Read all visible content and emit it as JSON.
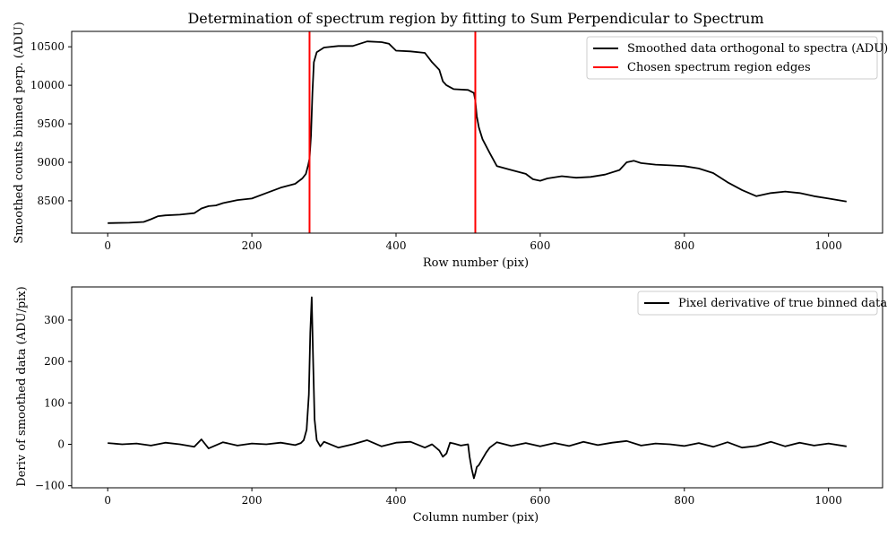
{
  "chart_data": [
    {
      "type": "line",
      "title": "Determination of spectrum region by fitting to Sum Perpendicular to Spectrum",
      "xlabel": "Row number (pix)",
      "ylabel": "Smoothed counts binned perp. (ADU)",
      "xlim": [
        -50,
        1075
      ],
      "ylim": [
        8080,
        10700
      ],
      "xticks": [
        0,
        200,
        400,
        600,
        800,
        1000
      ],
      "yticks": [
        8500,
        9000,
        9500,
        10000,
        10500
      ],
      "legend_position": "upper-right",
      "series": [
        {
          "name": "Smoothed data orthogonal to spectra (ADU)",
          "color": "#000000",
          "x": [
            0,
            30,
            50,
            60,
            70,
            80,
            100,
            120,
            130,
            140,
            150,
            160,
            180,
            200,
            220,
            240,
            260,
            270,
            275,
            278,
            280,
            282,
            284,
            286,
            290,
            300,
            320,
            340,
            360,
            380,
            390,
            400,
            420,
            440,
            450,
            460,
            465,
            470,
            480,
            500,
            508,
            510,
            512,
            515,
            520,
            530,
            540,
            560,
            580,
            590,
            600,
            610,
            630,
            650,
            670,
            690,
            710,
            720,
            730,
            740,
            760,
            780,
            800,
            820,
            840,
            860,
            880,
            900,
            920,
            940,
            960,
            980,
            1000,
            1025
          ],
          "values": [
            8210,
            8215,
            8225,
            8260,
            8300,
            8310,
            8320,
            8340,
            8400,
            8430,
            8440,
            8470,
            8510,
            8530,
            8600,
            8670,
            8720,
            8790,
            8850,
            8960,
            9050,
            9350,
            9900,
            10300,
            10430,
            10490,
            10510,
            10510,
            10570,
            10560,
            10540,
            10450,
            10440,
            10420,
            10300,
            10200,
            10050,
            10000,
            9950,
            9940,
            9900,
            9800,
            9600,
            9450,
            9300,
            9120,
            8950,
            8900,
            8850,
            8780,
            8760,
            8790,
            8820,
            8800,
            8810,
            8840,
            8900,
            9000,
            9020,
            8990,
            8970,
            8960,
            8950,
            8920,
            8860,
            8740,
            8640,
            8560,
            8600,
            8620,
            8600,
            8560,
            8530,
            8490
          ]
        },
        {
          "name": "Chosen spectrum region edges",
          "color": "#ff0000",
          "vlines": [
            280,
            510
          ]
        }
      ]
    },
    {
      "type": "line",
      "title": "",
      "xlabel": "Column number (pix)",
      "ylabel": "Deriv of smoothed data (ADU/pix)",
      "xlim": [
        -50,
        1075
      ],
      "ylim": [
        -105,
        380
      ],
      "xticks": [
        0,
        200,
        400,
        600,
        800,
        1000
      ],
      "yticks": [
        -100,
        0,
        100,
        200,
        300
      ],
      "legend_position": "upper-right",
      "series": [
        {
          "name": "Pixel derivative of true binned data",
          "color": "#000000",
          "x": [
            0,
            20,
            40,
            60,
            80,
            100,
            120,
            130,
            140,
            160,
            180,
            200,
            220,
            240,
            260,
            268,
            272,
            276,
            279,
            281,
            283,
            285,
            287,
            290,
            295,
            300,
            320,
            340,
            360,
            380,
            400,
            420,
            440,
            450,
            460,
            465,
            470,
            475,
            480,
            490,
            500,
            502,
            505,
            508,
            510,
            512,
            515,
            520,
            525,
            530,
            540,
            560,
            580,
            600,
            620,
            640,
            660,
            680,
            700,
            720,
            740,
            760,
            780,
            800,
            820,
            840,
            860,
            880,
            900,
            920,
            940,
            960,
            980,
            1000,
            1025
          ],
          "values": [
            3,
            0,
            2,
            -3,
            4,
            0,
            -6,
            12,
            -10,
            5,
            -3,
            2,
            0,
            4,
            -2,
            3,
            10,
            35,
            120,
            270,
            355,
            200,
            60,
            10,
            -5,
            6,
            -8,
            0,
            10,
            -5,
            4,
            6,
            -8,
            0,
            -15,
            -30,
            -22,
            4,
            2,
            -3,
            0,
            -30,
            -60,
            -82,
            -70,
            -55,
            -50,
            -35,
            -20,
            -8,
            5,
            -4,
            3,
            -5,
            3,
            -4,
            6,
            -2,
            4,
            8,
            -3,
            2,
            0,
            -4,
            3,
            -6,
            5,
            -8,
            -4,
            6,
            -5,
            4,
            -3,
            2,
            -5
          ]
        }
      ]
    }
  ]
}
